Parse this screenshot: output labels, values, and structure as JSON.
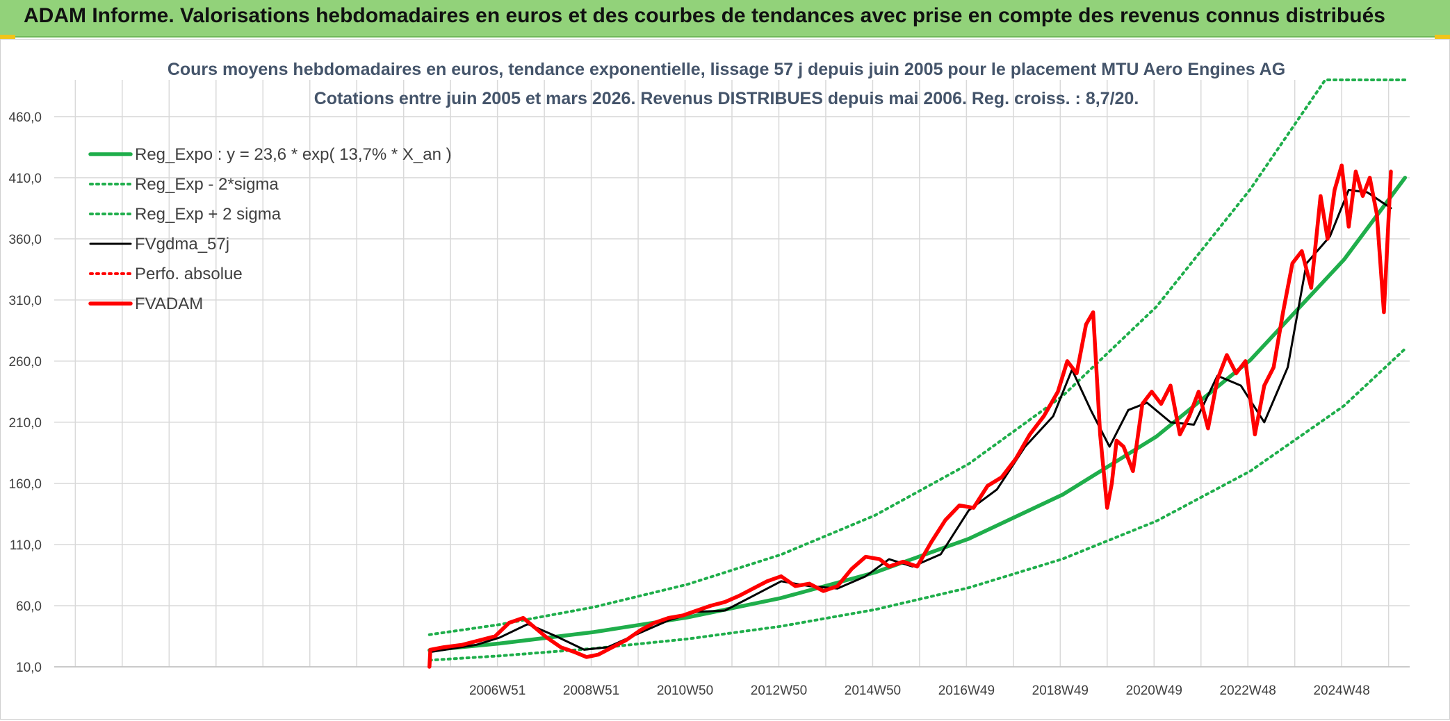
{
  "banner": {
    "title": "ADAM Informe. Valorisations hebdomadaires en euros et des courbes de tendances avec prise en compte des revenus connus distribués"
  },
  "chart_data": {
    "type": "line",
    "title": "Cours moyens hebdomadaires en euros, tendance exponentielle, lissage 57 j depuis juin 2005 pour le placement MTU Aero Engines AG",
    "subtitle": "Cotations entre juin 2005 et mars 2026. Revenus DISTRIBUES depuis mai 2006. Reg. croiss. : 8,7/20.",
    "xlabel": "",
    "ylabel": "",
    "ylim": [
      10,
      490
    ],
    "xlim": [
      1997.5,
      2026.4
    ],
    "y_ticks": [
      "10,0",
      "60,0",
      "110,0",
      "160,0",
      "210,0",
      "260,0",
      "310,0",
      "360,0",
      "410,0",
      "460,0"
    ],
    "x_ticks": [
      {
        "label": "2006W51",
        "x": 2006.95
      },
      {
        "label": "2008W51",
        "x": 2008.95
      },
      {
        "label": "2010W50",
        "x": 2010.95
      },
      {
        "label": "2012W50",
        "x": 2012.95
      },
      {
        "label": "2014W50",
        "x": 2014.95
      },
      {
        "label": "2016W49",
        "x": 2016.95
      },
      {
        "label": "2018W49",
        "x": 2018.95
      },
      {
        "label": "2020W49",
        "x": 2020.95
      },
      {
        "label": "2022W48",
        "x": 2022.95
      },
      {
        "label": "2024W48",
        "x": 2024.95
      }
    ],
    "grid": true,
    "legend_position": "top-left",
    "colors": {
      "green": "#1fae4b",
      "black": "#000000",
      "red": "#ff0000"
    },
    "series": [
      {
        "name": "Reg_Expo : y = 23,6 * exp( 13,7% *  X_an )",
        "style": "solid-thick",
        "color": "#1fae4b",
        "x": [
          2005.5,
          2007,
          2009,
          2011,
          2013,
          2015,
          2017,
          2019,
          2021,
          2023,
          2025,
          2026.3
        ],
        "y": [
          23.6,
          29.1,
          38.4,
          50.4,
          66.3,
          87.2,
          114.7,
          150.8,
          198.3,
          260.8,
          343.0,
          410.0
        ]
      },
      {
        "name": "Reg_Exp - 2*sigma",
        "style": "dotted",
        "color": "#1fae4b",
        "x": [
          2005.5,
          2007,
          2009,
          2011,
          2013,
          2015,
          2017,
          2019,
          2021,
          2023,
          2025,
          2026.3
        ],
        "y": [
          15.4,
          19.0,
          25.0,
          32.8,
          43.2,
          56.8,
          74.7,
          98.2,
          129.2,
          170.0,
          223.5,
          270.0
        ]
      },
      {
        "name": "Reg_Exp + 2 sigma",
        "style": "dotted",
        "color": "#1fae4b",
        "x": [
          2005.5,
          2007,
          2009,
          2011,
          2013,
          2015,
          2017,
          2019,
          2021,
          2023,
          2024.6,
          2026.3
        ],
        "y": [
          36.3,
          44.6,
          58.8,
          77.4,
          101.8,
          133.9,
          176.0,
          231.5,
          304.5,
          400.5,
          490.0,
          490.0
        ]
      },
      {
        "name": "FVgdma_57j",
        "style": "solid",
        "color": "#000000",
        "x": [
          2005.5,
          2006,
          2006.5,
          2007,
          2007.6,
          2008.2,
          2008.8,
          2009.3,
          2010,
          2010.6,
          2011.2,
          2011.8,
          2012.4,
          2013,
          2013.6,
          2014.2,
          2014.8,
          2015.3,
          2015.8,
          2016.4,
          2017,
          2017.6,
          2018.2,
          2018.8,
          2019.2,
          2019.6,
          2020,
          2020.4,
          2020.8,
          2021.3,
          2021.8,
          2022.3,
          2022.8,
          2023.3,
          2023.8,
          2024.2,
          2024.7,
          2025.1,
          2025.5,
          2026
        ],
        "y": [
          22,
          25,
          28,
          34,
          45,
          35,
          24,
          26,
          38,
          48,
          55,
          56,
          68,
          80,
          76,
          74,
          84,
          98,
          92,
          102,
          138,
          155,
          190,
          215,
          253,
          220,
          190,
          220,
          226,
          210,
          208,
          248,
          240,
          210,
          255,
          340,
          362,
          400,
          398,
          385
        ]
      },
      {
        "name": "Perfo. absolue",
        "style": "dotted",
        "color": "#ff0000",
        "x": [],
        "y": []
      },
      {
        "name": "FVADAM",
        "style": "solid-thick",
        "color": "#ff0000",
        "x": [
          2005.5,
          2005.52,
          2005.8,
          2006.2,
          2006.6,
          2006.9,
          2007.2,
          2007.5,
          2007.75,
          2008.0,
          2008.3,
          2008.6,
          2008.85,
          2009.1,
          2009.4,
          2009.7,
          2010.0,
          2010.3,
          2010.6,
          2010.9,
          2011.2,
          2011.5,
          2011.8,
          2012.1,
          2012.4,
          2012.7,
          2013.0,
          2013.3,
          2013.6,
          2013.9,
          2014.2,
          2014.5,
          2014.8,
          2015.1,
          2015.3,
          2015.6,
          2015.9,
          2016.2,
          2016.5,
          2016.8,
          2017.1,
          2017.4,
          2017.7,
          2018.0,
          2018.3,
          2018.6,
          2018.9,
          2019.1,
          2019.3,
          2019.5,
          2019.65,
          2019.8,
          2019.95,
          2020.05,
          2020.15,
          2020.3,
          2020.5,
          2020.7,
          2020.9,
          2021.1,
          2021.3,
          2021.5,
          2021.7,
          2021.9,
          2022.1,
          2022.3,
          2022.5,
          2022.7,
          2022.9,
          2023.1,
          2023.3,
          2023.5,
          2023.7,
          2023.9,
          2024.1,
          2024.3,
          2024.5,
          2024.65,
          2024.8,
          2024.95,
          2025.1,
          2025.25,
          2025.4,
          2025.55,
          2025.7,
          2025.85,
          2026.0
        ],
        "y": [
          10,
          24,
          26,
          28,
          32,
          35,
          46,
          50,
          42,
          34,
          26,
          22,
          18,
          20,
          26,
          32,
          40,
          46,
          50,
          52,
          56,
          60,
          63,
          68,
          74,
          80,
          84,
          76,
          78,
          72,
          76,
          90,
          100,
          98,
          92,
          96,
          92,
          112,
          130,
          142,
          140,
          158,
          165,
          180,
          200,
          215,
          235,
          260,
          250,
          290,
          300,
          200,
          140,
          160,
          195,
          190,
          170,
          225,
          235,
          225,
          240,
          200,
          215,
          235,
          205,
          245,
          265,
          250,
          260,
          200,
          240,
          255,
          300,
          340,
          350,
          320,
          395,
          360,
          400,
          420,
          370,
          415,
          395,
          410,
          380,
          300,
          415
        ]
      }
    ]
  }
}
